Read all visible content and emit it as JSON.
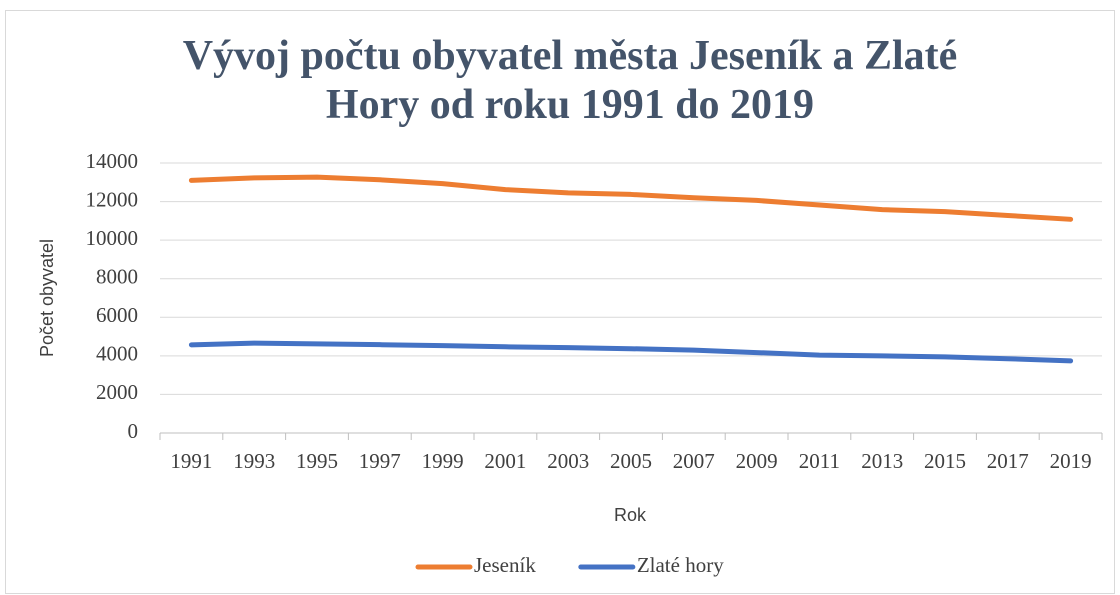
{
  "chart_data": {
    "type": "line",
    "title": "Vývoj počtu obyvatel města Jeseník a Zlaté Hory od roku 1991 do 2019",
    "x_label": "Rok",
    "y_label": "Počet obyvatel",
    "categories": [
      "1991",
      "1993",
      "1995",
      "1997",
      "1999",
      "2001",
      "2003",
      "2005",
      "2007",
      "2009",
      "2011",
      "2013",
      "2015",
      "2017",
      "2019"
    ],
    "series": [
      {
        "name": "Jeseník",
        "color": "#ed7d31",
        "values": [
          13100,
          13230,
          13270,
          13130,
          12930,
          12620,
          12450,
          12370,
          12200,
          12060,
          11820,
          11580,
          11480,
          11280,
          11080
        ]
      },
      {
        "name": "Zlaté hory",
        "color": "#4472c4",
        "values": [
          4570,
          4660,
          4620,
          4580,
          4530,
          4470,
          4430,
          4370,
          4300,
          4170,
          4040,
          4000,
          3950,
          3850,
          3740
        ]
      }
    ],
    "ylim": [
      0,
      14000
    ],
    "yticks": [
      0,
      2000,
      4000,
      6000,
      8000,
      10000,
      12000,
      14000
    ],
    "grid": true,
    "legend": "bottom"
  }
}
